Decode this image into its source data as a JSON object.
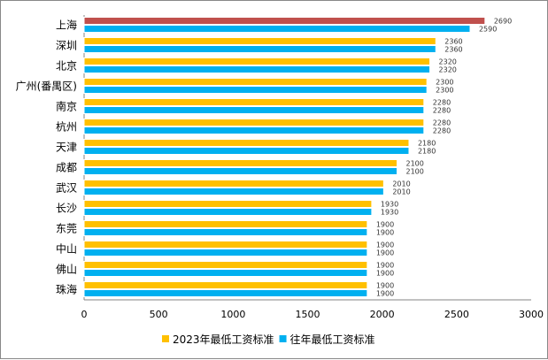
{
  "chart_data": {
    "type": "bar",
    "orientation": "horizontal",
    "categories": [
      "上海",
      "深圳",
      "北京",
      "广州(番禺区)",
      "南京",
      "杭州",
      "天津",
      "成都",
      "武汉",
      "长沙",
      "东莞",
      "中山",
      "佛山",
      "珠海"
    ],
    "series": [
      {
        "name": "2023年最低工资标准",
        "color": "#FFC000",
        "values": [
          2690,
          2360,
          2320,
          2300,
          2280,
          2280,
          2180,
          2100,
          2010,
          1930,
          1900,
          1900,
          1900,
          1900
        ]
      },
      {
        "name": "往年最低工资标准",
        "color": "#00B0F0",
        "values": [
          2590,
          2360,
          2320,
          2300,
          2280,
          2280,
          2180,
          2100,
          2010,
          1930,
          1900,
          1900,
          1900,
          1900
        ]
      }
    ],
    "highlight": {
      "category": "上海",
      "series": 0,
      "color": "#C0504D"
    },
    "xlim": [
      0,
      3000
    ],
    "xticks": [
      0,
      500,
      1000,
      1500,
      2000,
      2500,
      3000
    ],
    "grid": false,
    "legend": "bottom",
    "data_labels": true
  }
}
